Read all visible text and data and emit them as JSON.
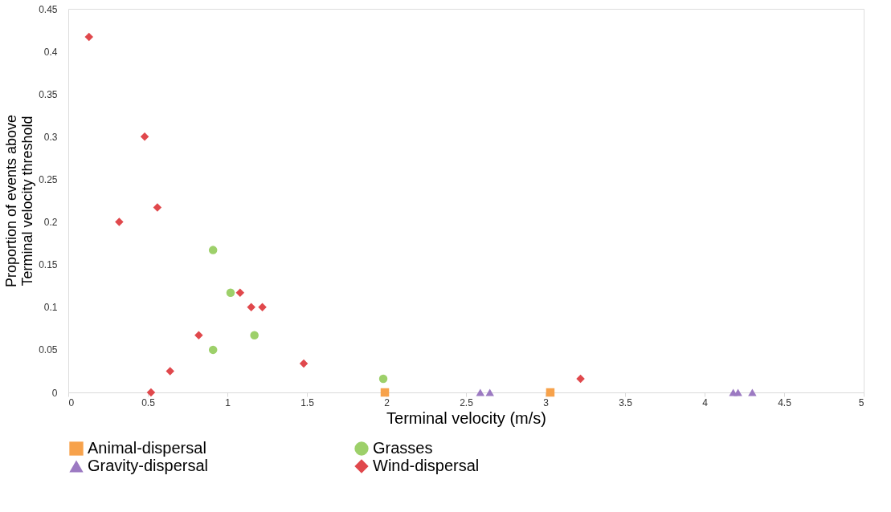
{
  "chart_data": {
    "type": "scatter",
    "xlabel": "Terminal velocity (m/s)",
    "ylabel": "Proportion of events above\nTerminal velocity threshold",
    "xlim": [
      0,
      5
    ],
    "xticks": [
      0,
      0.5,
      1,
      1.5,
      2,
      2.5,
      3,
      3.5,
      4,
      4.5,
      5
    ],
    "ylim": [
      0,
      0.45
    ],
    "yticks": [
      0,
      0.05,
      0.1,
      0.15,
      0.2,
      0.25,
      0.3,
      0.35,
      0.4,
      0.45
    ],
    "grid": false,
    "legend": "bottom",
    "series": [
      {
        "name": "Animal-dispersal",
        "color": "#f7a24b",
        "marker": "square",
        "x": [
          1.99,
          3.03
        ],
        "values": [
          0,
          0
        ]
      },
      {
        "name": "Grasses",
        "color": "#9dd06a",
        "marker": "circle",
        "x": [
          0.91,
          1.02,
          0.91,
          1.17,
          1.98
        ],
        "values": [
          0.167,
          0.117,
          0.05,
          0.067,
          0.016
        ]
      },
      {
        "name": "Gravity-dispersal",
        "color": "#9c7ac2",
        "marker": "triangle",
        "x": [
          2.59,
          2.65,
          4.18,
          4.21,
          4.3
        ],
        "values": [
          0,
          0,
          0,
          0,
          0
        ]
      },
      {
        "name": "Wind-dispersal",
        "color": "#e0484c",
        "marker": "diamond",
        "x": [
          0.13,
          0.48,
          0.32,
          0.56,
          1.08,
          1.15,
          1.22,
          0.82,
          0.64,
          0.52,
          1.48,
          3.22
        ],
        "values": [
          0.417,
          0.3,
          0.2,
          0.217,
          0.117,
          0.1,
          0.1,
          0.067,
          0.025,
          0,
          0.034,
          0.016
        ]
      }
    ]
  }
}
